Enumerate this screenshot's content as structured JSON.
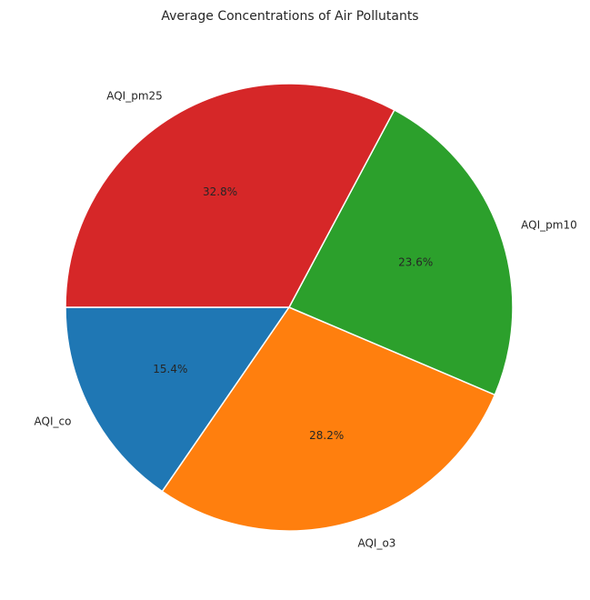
{
  "chart_data": {
    "type": "pie",
    "title": "Average Concentrations of Air Pollutants",
    "categories": [
      "AQI_co",
      "AQI_o3",
      "AQI_pm10",
      "AQI_pm25"
    ],
    "values": [
      15.4,
      28.2,
      23.6,
      32.8
    ],
    "percent_labels": [
      "15.4%",
      "28.2%",
      "23.6%",
      "32.8%"
    ],
    "colors": [
      "#1f77b4",
      "#ff7f0e",
      "#2ca02c",
      "#d62728"
    ],
    "start_angle_deg": 180,
    "direction": "counterclockwise",
    "edge_color": "#ffffff"
  }
}
